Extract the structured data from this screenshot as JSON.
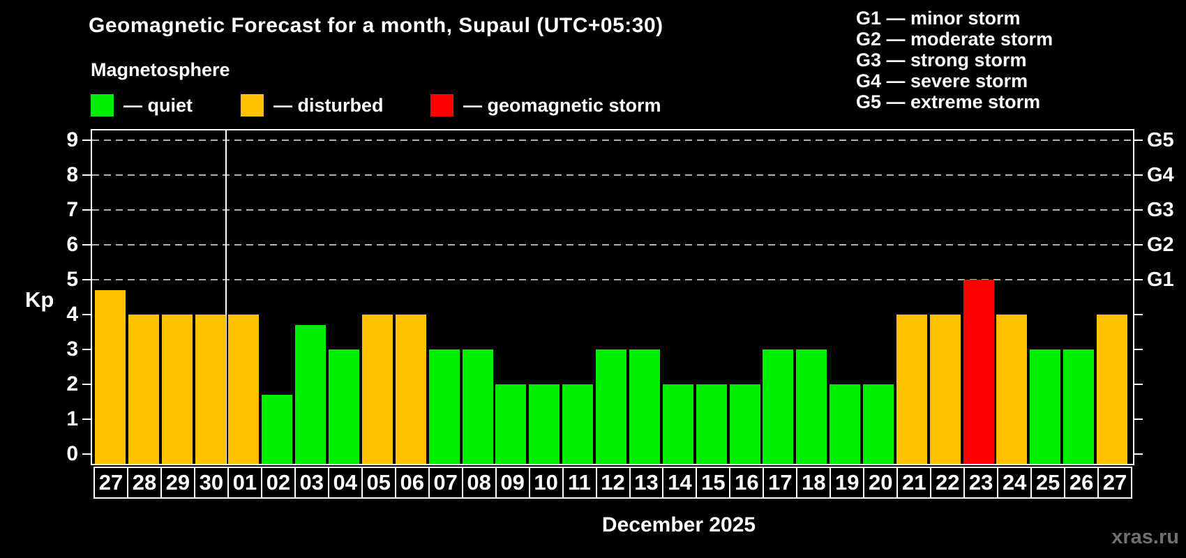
{
  "header": {
    "title": "Geomagnetic Forecast for a month, Supaul (UTC+05:30)",
    "subtitle": "Magnetosphere"
  },
  "legend": {
    "items": [
      {
        "name": "quiet",
        "label": "— quiet",
        "color": "#00ef00"
      },
      {
        "name": "disturbed",
        "label": "— disturbed",
        "color": "#ffc000"
      },
      {
        "name": "storm",
        "label": "— geomagnetic storm",
        "color": "#ff0000"
      }
    ]
  },
  "g_legend": {
    "lines": [
      "G1 — minor storm",
      "G2 — moderate storm",
      "G3 — strong storm",
      "G4 — severe storm",
      "G5 — extreme storm"
    ]
  },
  "axis": {
    "kp_label": "Kp",
    "left_tick_labels": [
      "0",
      "1",
      "2",
      "3",
      "4",
      "5",
      "6",
      "7",
      "8",
      "9"
    ],
    "g_labels": [
      {
        "label": "G1",
        "kp": 5
      },
      {
        "label": "G2",
        "kp": 6
      },
      {
        "label": "G3",
        "kp": 7
      },
      {
        "label": "G4",
        "kp": 8
      },
      {
        "label": "G5",
        "kp": 9
      }
    ]
  },
  "chart_data": {
    "type": "bar",
    "title": "Geomagnetic Forecast for a month, Supaul (UTC+05:30)",
    "xlabel": "December 2025",
    "ylabel": "Kp",
    "ylim": [
      0,
      9
    ],
    "grid": "dashed horizontal gridlines at Kp 5-9 (G1-G5 storm levels)",
    "legend_position": "top",
    "gridlines_at_kp": [
      5,
      6,
      7,
      8,
      9
    ],
    "categories": [
      "27",
      "28",
      "29",
      "30",
      "01",
      "02",
      "03",
      "04",
      "05",
      "06",
      "07",
      "08",
      "09",
      "10",
      "11",
      "12",
      "13",
      "14",
      "15",
      "16",
      "17",
      "18",
      "19",
      "20",
      "21",
      "22",
      "23",
      "24",
      "25",
      "26",
      "27"
    ],
    "values": [
      4.7,
      4,
      4,
      4,
      4,
      1.7,
      3.7,
      3,
      4,
      4,
      3,
      3,
      2,
      2,
      2,
      3,
      3,
      2,
      2,
      2,
      3,
      3,
      2,
      2,
      4,
      4,
      5,
      4,
      3,
      3,
      4
    ],
    "states": [
      "disturbed",
      "disturbed",
      "disturbed",
      "disturbed",
      "disturbed",
      "quiet",
      "quiet",
      "quiet",
      "disturbed",
      "disturbed",
      "quiet",
      "quiet",
      "quiet",
      "quiet",
      "quiet",
      "quiet",
      "quiet",
      "quiet",
      "quiet",
      "quiet",
      "quiet",
      "quiet",
      "quiet",
      "quiet",
      "disturbed",
      "disturbed",
      "storm",
      "disturbed",
      "quiet",
      "quiet",
      "disturbed"
    ],
    "colors": {
      "quiet": "#00ef00",
      "disturbed": "#ffc000",
      "storm": "#ff0000"
    },
    "month_boundary_after_index": 3
  },
  "footer": {
    "month_label": "December 2025",
    "watermark": "xras.ru"
  }
}
